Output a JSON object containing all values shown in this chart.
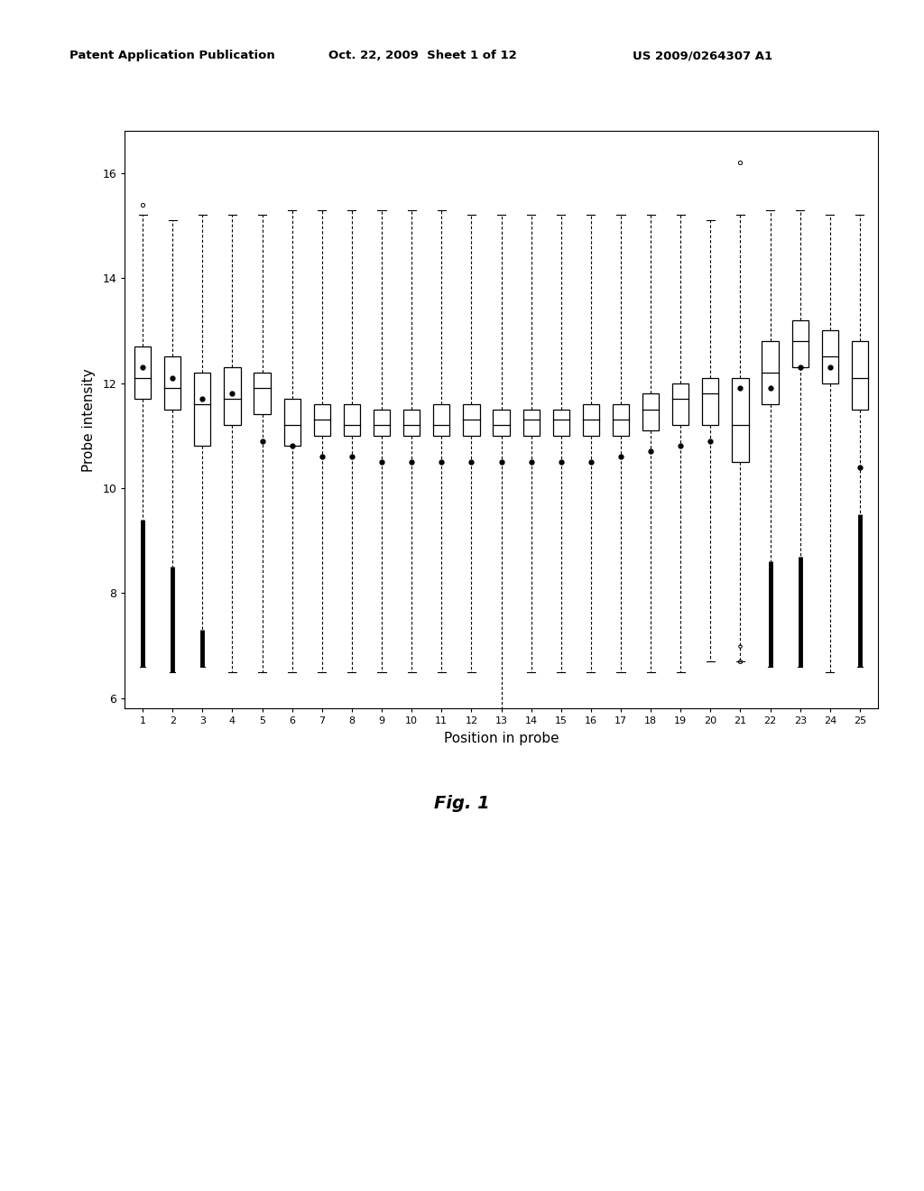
{
  "title": "",
  "xlabel": "Position in probe",
  "ylabel": "Probe intensity",
  "xlim": [
    0.4,
    25.6
  ],
  "ylim": [
    5.8,
    16.8
  ],
  "yticks": [
    6,
    8,
    10,
    12,
    14,
    16
  ],
  "positions": [
    1,
    2,
    3,
    4,
    5,
    6,
    7,
    8,
    9,
    10,
    11,
    12,
    13,
    14,
    15,
    16,
    17,
    18,
    19,
    20,
    21,
    22,
    23,
    24,
    25
  ],
  "q1": [
    11.7,
    11.5,
    10.8,
    11.2,
    11.4,
    10.8,
    11.0,
    11.0,
    11.0,
    11.0,
    11.0,
    11.0,
    11.0,
    11.0,
    11.0,
    11.0,
    11.0,
    11.1,
    11.2,
    11.2,
    10.5,
    11.6,
    12.3,
    12.0,
    11.5
  ],
  "median": [
    12.1,
    11.9,
    11.6,
    11.7,
    11.9,
    11.2,
    11.3,
    11.2,
    11.2,
    11.2,
    11.2,
    11.3,
    11.2,
    11.3,
    11.3,
    11.3,
    11.3,
    11.5,
    11.7,
    11.8,
    11.2,
    12.2,
    12.8,
    12.5,
    12.1
  ],
  "q3": [
    12.7,
    12.5,
    12.2,
    12.3,
    12.2,
    11.7,
    11.6,
    11.6,
    11.5,
    11.5,
    11.6,
    11.6,
    11.5,
    11.5,
    11.5,
    11.6,
    11.6,
    11.8,
    12.0,
    12.1,
    12.1,
    12.8,
    13.2,
    13.0,
    12.8
  ],
  "whisker_low": [
    6.7,
    6.6,
    6.6,
    6.5,
    6.5,
    6.5,
    6.5,
    6.5,
    6.5,
    6.5,
    6.5,
    6.5,
    5.3,
    6.5,
    6.5,
    6.5,
    6.5,
    6.5,
    6.5,
    6.7,
    6.7,
    6.6,
    6.6,
    6.5,
    6.5
  ],
  "whisker_high": [
    15.2,
    15.1,
    15.2,
    15.2,
    15.2,
    15.3,
    15.3,
    15.3,
    15.3,
    15.3,
    15.3,
    15.2,
    15.2,
    15.2,
    15.2,
    15.2,
    15.2,
    15.2,
    15.2,
    15.1,
    15.2,
    15.3,
    15.3,
    15.2,
    15.2
  ],
  "mean": [
    12.3,
    12.1,
    11.7,
    11.8,
    10.9,
    10.8,
    10.6,
    10.6,
    10.5,
    10.5,
    10.5,
    10.5,
    10.5,
    10.5,
    10.5,
    10.5,
    10.6,
    10.7,
    10.8,
    10.9,
    11.9,
    11.9,
    12.3,
    12.3,
    10.4
  ],
  "outliers_high": [
    [
      15.4
    ],
    [],
    [],
    [],
    [],
    [],
    [],
    [],
    [],
    [],
    [],
    [],
    [],
    [],
    [],
    [],
    [],
    [],
    [],
    [],
    [
      16.2
    ],
    [],
    [],
    [],
    []
  ],
  "outliers_low": [
    [],
    [],
    [],
    [],
    [],
    [],
    [],
    [],
    [],
    [],
    [],
    [],
    [],
    [],
    [],
    [],
    [],
    [],
    [],
    [],
    [
      7.0
    ],
    [],
    [],
    [],
    []
  ],
  "dense_bar_positions": [
    1,
    2,
    3,
    22,
    23,
    25
  ],
  "dense_bar_ranges": [
    [
      6.6,
      9.4
    ],
    [
      6.5,
      8.5
    ],
    [
      6.6,
      7.3
    ],
    [
      6.6,
      8.6
    ],
    [
      6.6,
      8.7
    ],
    [
      6.6,
      9.5
    ]
  ],
  "header_left": "Patent Application Publication",
  "header_mid": "Oct. 22, 2009  Sheet 1 of 12",
  "header_right": "US 2009/0264307 A1",
  "fig_label": "Fig. 1",
  "box_width": 0.55,
  "background_color": "#ffffff"
}
